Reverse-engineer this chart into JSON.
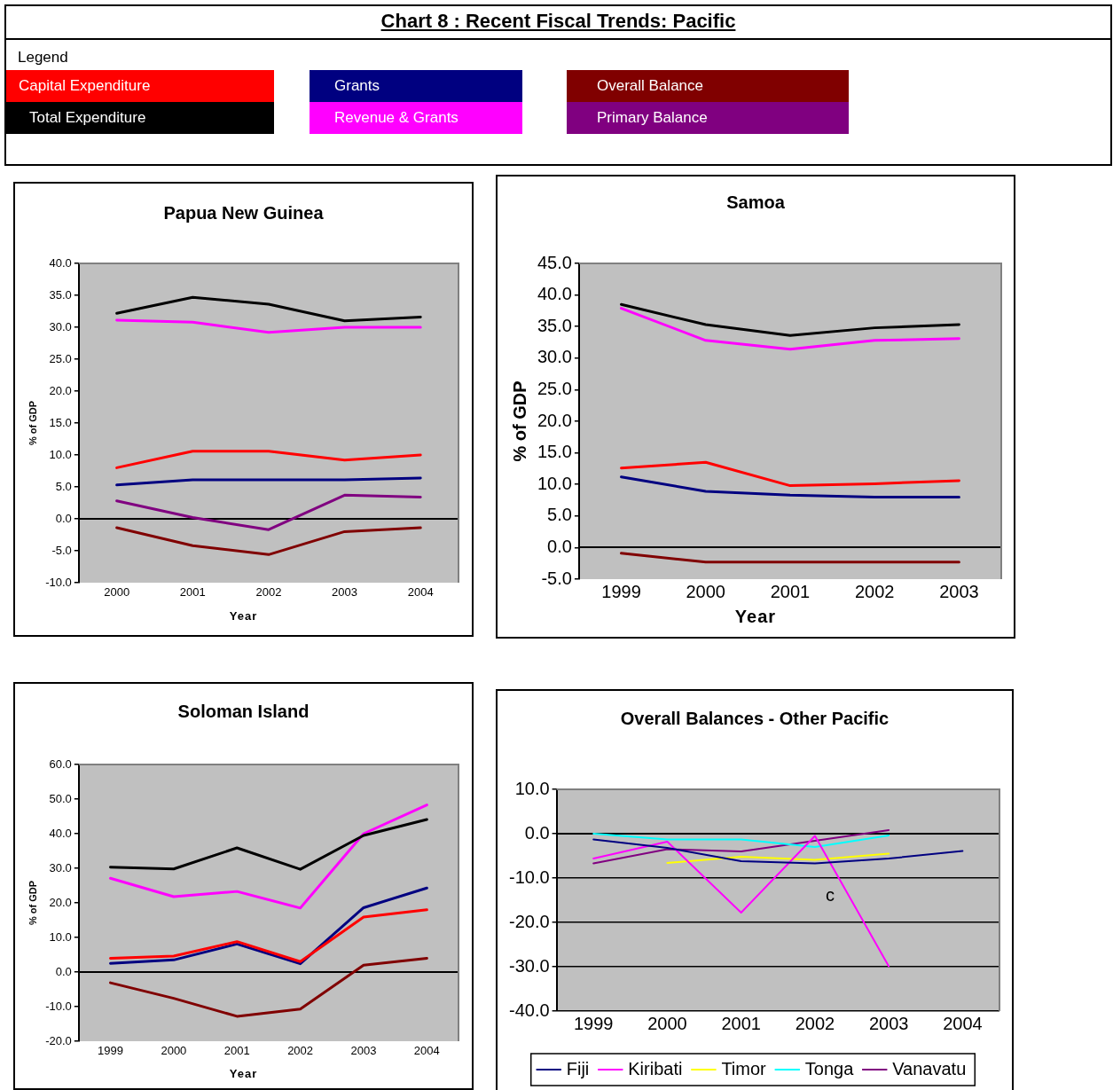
{
  "chart_data": [
    {
      "type": "other",
      "title": "Chart 8 : Recent Fiscal Trends: Pacific"
    },
    {
      "type": "line",
      "title": "Papua New Guinea",
      "xlabel": "Year",
      "ylabel": "% of GDP",
      "legend": "top",
      "legend_title": "Legend",
      "categories": [
        "2000",
        "2001",
        "2002",
        "2003",
        "2004"
      ],
      "ylim": [
        -10,
        40
      ],
      "yticks": [
        {
          "value": -10,
          "label": "-10.0"
        },
        {
          "value": -5,
          "label": "-5.0"
        },
        {
          "value": 0,
          "label": "0.0"
        },
        {
          "value": 5,
          "label": "5.0"
        },
        {
          "value": 10,
          "label": "10.0"
        },
        {
          "value": 15,
          "label": "15.0"
        },
        {
          "value": 20,
          "label": "20.0"
        },
        {
          "value": 25,
          "label": "25.0"
        },
        {
          "value": 30,
          "label": "30.0"
        },
        {
          "value": 35,
          "label": "35.0"
        },
        {
          "value": 40,
          "label": "40.0"
        }
      ],
      "series": [
        {
          "name": "Capital Expenditure",
          "color": "#ff0000",
          "values": [
            8.0,
            10.6,
            10.6,
            9.2,
            10.0
          ]
        },
        {
          "name": "Total Expenditure",
          "color": "#000000",
          "values": [
            32.2,
            34.7,
            33.6,
            31.0,
            31.6
          ]
        },
        {
          "name": "Grants",
          "color": "#000080",
          "values": [
            5.3,
            6.1,
            6.1,
            6.1,
            6.4
          ]
        },
        {
          "name": "Revenue & Grants",
          "color": "#ff00ff",
          "values": [
            31.1,
            30.8,
            29.2,
            30.0,
            30.0
          ]
        },
        {
          "name": "Overall Balance",
          "color": "#800000",
          "values": [
            -1.4,
            -4.2,
            -5.6,
            -2.0,
            -1.4
          ]
        },
        {
          "name": "Primary Balance",
          "color": "#800080",
          "values": [
            2.8,
            0.2,
            -1.7,
            3.7,
            3.4
          ]
        }
      ]
    },
    {
      "type": "line",
      "title": "Samoa",
      "xlabel": "Year",
      "ylabel": "% of GDP",
      "categories": [
        "1999",
        "2000",
        "2001",
        "2002",
        "2003"
      ],
      "ylim": [
        -5,
        45
      ],
      "yticks": [
        {
          "value": -5,
          "label": "-5.0"
        },
        {
          "value": 0,
          "label": "0.0"
        },
        {
          "value": 5,
          "label": "5.0"
        },
        {
          "value": 10,
          "label": "10.0"
        },
        {
          "value": 15,
          "label": "15.0"
        },
        {
          "value": 20,
          "label": "20.0"
        },
        {
          "value": 25,
          "label": "25.0"
        },
        {
          "value": 30,
          "label": "30.0"
        },
        {
          "value": 35,
          "label": "35.0"
        },
        {
          "value": 40,
          "label": "40.0"
        },
        {
          "value": 45,
          "label": "45.0"
        }
      ],
      "series": [
        {
          "color": "#ff0000",
          "values": [
            12.6,
            13.5,
            9.8,
            10.1,
            10.6
          ]
        },
        {
          "color": "#000000",
          "values": [
            38.5,
            35.3,
            33.6,
            34.8,
            35.3
          ]
        },
        {
          "color": "#000080",
          "values": [
            11.2,
            8.9,
            8.3,
            8.0,
            8.0
          ]
        },
        {
          "color": "#ff00ff",
          "values": [
            37.9,
            32.8,
            31.4,
            32.8,
            33.1
          ]
        },
        {
          "color": "#800000",
          "values": [
            -0.9,
            -2.3,
            -2.3,
            -2.3,
            -2.3
          ]
        }
      ]
    },
    {
      "type": "line",
      "title": "Soloman Island",
      "xlabel": "Year",
      "ylabel": "% of GDP",
      "categories": [
        "1999",
        "2000",
        "2001",
        "2002",
        "2003",
        "2004"
      ],
      "ylim": [
        -20,
        60
      ],
      "yticks": [
        {
          "value": -20,
          "label": "-20.0"
        },
        {
          "value": -10,
          "label": "-10.0"
        },
        {
          "value": 0,
          "label": "0.0"
        },
        {
          "value": 10,
          "label": "10.0"
        },
        {
          "value": 20,
          "label": "20.0"
        },
        {
          "value": 30,
          "label": "30.0"
        },
        {
          "value": 40,
          "label": "40.0"
        },
        {
          "value": 50,
          "label": "50.0"
        },
        {
          "value": 60,
          "label": "60.0"
        }
      ],
      "series": [
        {
          "color": "#ff0000",
          "values": [
            4.0,
            4.6,
            8.8,
            3.0,
            15.9,
            18.0
          ]
        },
        {
          "color": "#000000",
          "values": [
            30.3,
            29.8,
            35.9,
            29.7,
            39.5,
            44.1
          ]
        },
        {
          "color": "#000080",
          "values": [
            2.5,
            3.5,
            8.1,
            2.4,
            18.6,
            24.3
          ]
        },
        {
          "color": "#ff00ff",
          "values": [
            27.1,
            21.8,
            23.3,
            18.5,
            40.0,
            48.3
          ]
        },
        {
          "color": "#800000",
          "values": [
            -3.1,
            -7.6,
            -12.8,
            -10.7,
            2.0,
            4.0
          ]
        }
      ]
    },
    {
      "type": "line",
      "title": "Overall Balances - Other Pacific",
      "legend": "bottom",
      "grid": "y",
      "annotations": [
        "c"
      ],
      "categories": [
        "1999",
        "2000",
        "2001",
        "2002",
        "2003",
        "2004"
      ],
      "ylim": [
        -40,
        10
      ],
      "yticks": [
        {
          "value": -40,
          "label": "-40.0"
        },
        {
          "value": -30,
          "label": "-30.0"
        },
        {
          "value": -20,
          "label": "-20.0"
        },
        {
          "value": -10,
          "label": "-10.0"
        },
        {
          "value": 0,
          "label": "0.0"
        },
        {
          "value": 10,
          "label": "10.0"
        }
      ],
      "series": [
        {
          "name": "Fiji",
          "color": "#000080",
          "values": [
            -1.3,
            -3.2,
            -6.2,
            -6.7,
            -5.6,
            -3.9
          ]
        },
        {
          "name": "Kiribati",
          "color": "#ff00ff",
          "values": [
            -5.6,
            -1.8,
            -17.8,
            -0.5,
            -29.9,
            null
          ]
        },
        {
          "name": "Timor",
          "color": "#ffff00",
          "values": [
            null,
            -6.6,
            -5.2,
            -5.9,
            -4.5,
            null
          ]
        },
        {
          "name": "Tonga",
          "color": "#00ffff",
          "values": [
            0.0,
            -1.3,
            -1.3,
            -3.0,
            -0.4,
            null
          ]
        },
        {
          "name": "Vanavatu",
          "color": "#800080",
          "values": [
            -6.7,
            -3.5,
            -4.0,
            -1.6,
            0.8,
            null
          ]
        }
      ]
    }
  ]
}
